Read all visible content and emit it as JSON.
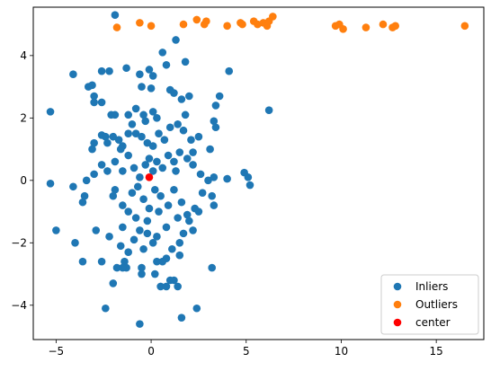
{
  "chart_data": {
    "type": "scatter",
    "title": "",
    "xlabel": "",
    "ylabel": "",
    "xlim": [
      -6.2,
      17.5
    ],
    "ylim": [
      -5.1,
      5.55
    ],
    "xticks": [
      -5,
      0,
      5,
      10,
      15
    ],
    "yticks": [
      -4,
      -2,
      0,
      2,
      4
    ],
    "grid": false,
    "legend_position": "lower-right",
    "series": [
      {
        "name": "Inliers",
        "color": "#1f77b4",
        "points": [
          [
            -1.9,
            5.3
          ],
          [
            -4.1,
            3.4
          ],
          [
            -3.3,
            3.0
          ],
          [
            -3.1,
            3.05
          ],
          [
            -2.6,
            3.5
          ],
          [
            -2.2,
            3.5
          ],
          [
            -1.3,
            3.6
          ],
          [
            -0.6,
            3.4
          ],
          [
            -0.1,
            3.55
          ],
          [
            0.1,
            3.35
          ],
          [
            0.6,
            4.1
          ],
          [
            1.3,
            4.5
          ],
          [
            0.8,
            3.7
          ],
          [
            1.8,
            3.8
          ],
          [
            4.1,
            3.5
          ],
          [
            -0.5,
            3.0
          ],
          [
            0.0,
            2.95
          ],
          [
            -3.0,
            2.7
          ],
          [
            -3.0,
            2.5
          ],
          [
            -2.6,
            2.5
          ],
          [
            -2.1,
            2.1
          ],
          [
            -1.9,
            2.1
          ],
          [
            -1.2,
            2.1
          ],
          [
            -0.8,
            2.3
          ],
          [
            -0.4,
            2.1
          ],
          [
            0.1,
            2.2
          ],
          [
            0.3,
            2.0
          ],
          [
            1.0,
            2.9
          ],
          [
            1.2,
            2.8
          ],
          [
            1.6,
            2.6
          ],
          [
            2.0,
            2.7
          ],
          [
            3.6,
            2.7
          ],
          [
            3.4,
            2.4
          ],
          [
            6.2,
            2.25
          ],
          [
            -5.3,
            2.2
          ],
          [
            -3.1,
            1.0
          ],
          [
            -3.0,
            1.2
          ],
          [
            -2.6,
            1.45
          ],
          [
            -2.4,
            1.4
          ],
          [
            -2.3,
            1.2
          ],
          [
            -2.0,
            1.4
          ],
          [
            -1.7,
            1.3
          ],
          [
            -1.5,
            1.1
          ],
          [
            -1.2,
            1.5
          ],
          [
            -0.8,
            1.5
          ],
          [
            -0.5,
            1.4
          ],
          [
            -0.2,
            1.2
          ],
          [
            0.1,
            1.1
          ],
          [
            0.4,
            1.5
          ],
          [
            0.7,
            1.3
          ],
          [
            1.0,
            1.7
          ],
          [
            1.4,
            1.8
          ],
          [
            1.7,
            1.6
          ],
          [
            2.1,
            1.3
          ],
          [
            2.5,
            1.4
          ],
          [
            3.3,
            1.9
          ],
          [
            3.4,
            1.7
          ],
          [
            3.1,
            1.0
          ],
          [
            1.8,
            2.1
          ],
          [
            -0.3,
            1.9
          ],
          [
            -1.0,
            1.8
          ],
          [
            -3.4,
            0.0
          ],
          [
            -3.0,
            0.2
          ],
          [
            -2.6,
            0.5
          ],
          [
            -2.3,
            0.3
          ],
          [
            -1.9,
            0.6
          ],
          [
            -1.5,
            0.3
          ],
          [
            -1.2,
            0.8
          ],
          [
            -0.9,
            0.4
          ],
          [
            -0.6,
            0.1
          ],
          [
            -0.3,
            0.5
          ],
          [
            0.1,
            0.3
          ],
          [
            0.3,
            0.6
          ],
          [
            0.6,
            0.4
          ],
          [
            0.9,
            0.8
          ],
          [
            1.2,
            0.6
          ],
          [
            1.5,
            0.9
          ],
          [
            1.9,
            0.7
          ],
          [
            2.2,
            0.5
          ],
          [
            2.6,
            0.2
          ],
          [
            3.0,
            0.0
          ],
          [
            3.3,
            0.1
          ],
          [
            4.0,
            0.05
          ],
          [
            4.9,
            0.25
          ],
          [
            5.1,
            0.1
          ],
          [
            5.2,
            -0.15
          ],
          [
            2.2,
            0.9
          ],
          [
            -1.6,
            1.0
          ],
          [
            -0.1,
            0.7
          ],
          [
            1.3,
            0.3
          ],
          [
            -5.3,
            -0.1
          ],
          [
            -4.1,
            -0.2
          ],
          [
            -3.5,
            -0.5
          ],
          [
            -3.6,
            -0.7
          ],
          [
            -1.9,
            -0.3
          ],
          [
            -2.0,
            -0.5
          ],
          [
            -1.5,
            -0.8
          ],
          [
            -1.0,
            -0.4
          ],
          [
            -0.7,
            -0.2
          ],
          [
            -0.4,
            -0.6
          ],
          [
            -0.1,
            -0.9
          ],
          [
            0.2,
            -0.3
          ],
          [
            0.5,
            -0.5
          ],
          [
            0.9,
            -0.8
          ],
          [
            1.2,
            -0.3
          ],
          [
            1.6,
            -0.7
          ],
          [
            1.9,
            -1.1
          ],
          [
            2.3,
            -0.9
          ],
          [
            2.7,
            -0.4
          ],
          [
            3.2,
            -0.5
          ],
          [
            -1.2,
            -1.0
          ],
          [
            -0.8,
            -1.2
          ],
          [
            -0.2,
            -1.3
          ],
          [
            0.4,
            -1.0
          ],
          [
            0.8,
            -1.5
          ],
          [
            1.4,
            -1.2
          ],
          [
            2.0,
            -1.3
          ],
          [
            2.5,
            -1.0
          ],
          [
            3.3,
            -0.8
          ],
          [
            -1.5,
            -1.5
          ],
          [
            -0.6,
            -1.6
          ],
          [
            -5.0,
            -1.6
          ],
          [
            -4.0,
            -2.0
          ],
          [
            -2.9,
            -1.6
          ],
          [
            -2.2,
            -1.8
          ],
          [
            -1.6,
            -2.1
          ],
          [
            -1.2,
            -2.3
          ],
          [
            -0.9,
            -1.9
          ],
          [
            -0.4,
            -2.2
          ],
          [
            -0.2,
            -1.7
          ],
          [
            0.1,
            -2.0
          ],
          [
            0.3,
            -1.8
          ],
          [
            0.8,
            -2.5
          ],
          [
            1.1,
            -2.2
          ],
          [
            1.5,
            -2.0
          ],
          [
            1.7,
            -1.7
          ],
          [
            2.2,
            -1.6
          ],
          [
            -1.4,
            -2.6
          ],
          [
            -0.5,
            -2.8
          ],
          [
            0.6,
            -2.6
          ],
          [
            1.5,
            -2.4
          ],
          [
            -1.8,
            -2.8
          ],
          [
            -1.3,
            -2.8
          ],
          [
            0.3,
            -2.6
          ],
          [
            -3.6,
            -2.6
          ],
          [
            -2.6,
            -2.6
          ],
          [
            -2.0,
            -3.3
          ],
          [
            -1.5,
            -2.8
          ],
          [
            -0.5,
            -3.0
          ],
          [
            0.2,
            -3.0
          ],
          [
            0.5,
            -3.4
          ],
          [
            0.8,
            -3.4
          ],
          [
            1.2,
            -3.2
          ],
          [
            1.4,
            -3.4
          ],
          [
            3.2,
            -2.8
          ],
          [
            -2.4,
            -4.1
          ],
          [
            -0.6,
            -4.6
          ],
          [
            1.6,
            -4.4
          ],
          [
            2.4,
            -4.1
          ],
          [
            1.0,
            -3.2
          ]
        ]
      },
      {
        "name": "Outliers",
        "color": "#ff7f0e",
        "points": [
          [
            -1.8,
            4.9
          ],
          [
            -0.6,
            5.05
          ],
          [
            0.0,
            4.95
          ],
          [
            1.7,
            5.0
          ],
          [
            2.4,
            5.15
          ],
          [
            2.8,
            5.0
          ],
          [
            2.9,
            5.1
          ],
          [
            4.0,
            4.95
          ],
          [
            4.7,
            5.05
          ],
          [
            4.8,
            5.0
          ],
          [
            5.4,
            5.1
          ],
          [
            5.6,
            5.0
          ],
          [
            5.9,
            5.05
          ],
          [
            6.1,
            4.95
          ],
          [
            6.4,
            5.25
          ],
          [
            6.2,
            5.1
          ],
          [
            9.7,
            4.95
          ],
          [
            9.9,
            5.0
          ],
          [
            10.1,
            4.85
          ],
          [
            11.3,
            4.9
          ],
          [
            12.2,
            5.0
          ],
          [
            12.7,
            4.9
          ],
          [
            12.85,
            4.95
          ],
          [
            16.5,
            4.95
          ]
        ]
      },
      {
        "name": "center",
        "color": "#ff0000",
        "points": [
          [
            -0.1,
            0.1
          ]
        ]
      }
    ]
  }
}
